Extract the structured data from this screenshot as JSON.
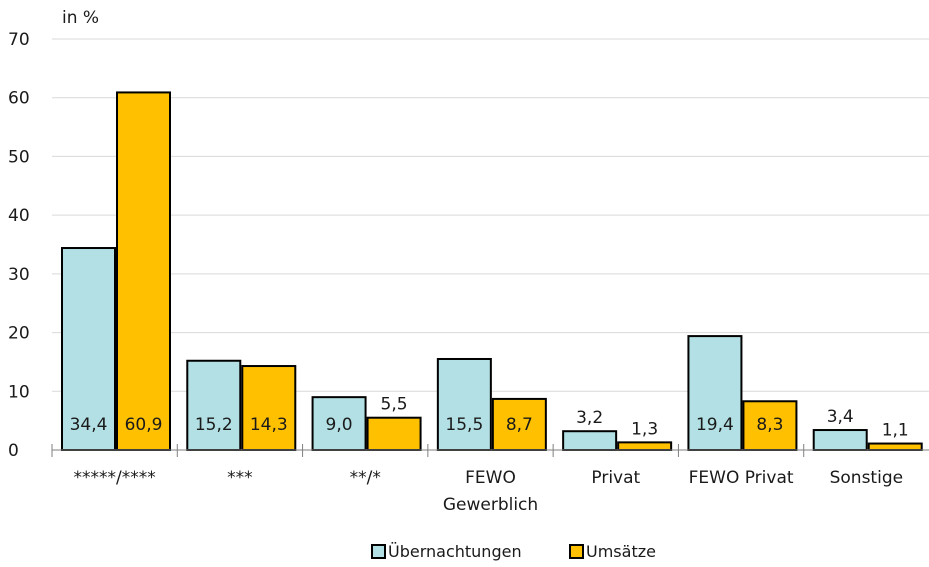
{
  "chart_data": {
    "type": "bar",
    "unit_label": "in %",
    "categories": [
      [
        "*****/****"
      ],
      [
        "***"
      ],
      [
        "**/*"
      ],
      [
        "FEWO",
        "Gewerblich"
      ],
      [
        "Privat"
      ],
      [
        "FEWO Privat"
      ],
      [
        "Sonstige"
      ]
    ],
    "series": [
      {
        "name": "Übernachtungen",
        "color": "#b2e0e4",
        "values": [
          34.4,
          15.2,
          9.0,
          15.5,
          3.2,
          19.4,
          3.4
        ],
        "labels": [
          "34,4",
          "15,2",
          "9,0",
          "15,5",
          "3,2",
          "19,4",
          "3,4"
        ]
      },
      {
        "name": "Umsätze",
        "color": "#ffc000",
        "values": [
          60.9,
          14.3,
          5.5,
          8.7,
          1.3,
          8.3,
          1.1
        ],
        "labels": [
          "60,9",
          "14,3",
          "5,5",
          "8,7",
          "1,3",
          "8,3",
          "1,1"
        ]
      }
    ],
    "yticks": [
      "0",
      "10",
      "20",
      "30",
      "40",
      "50",
      "60",
      "70"
    ],
    "ylim": [
      0,
      70
    ],
    "grid": true,
    "legend_position": "bottom"
  }
}
